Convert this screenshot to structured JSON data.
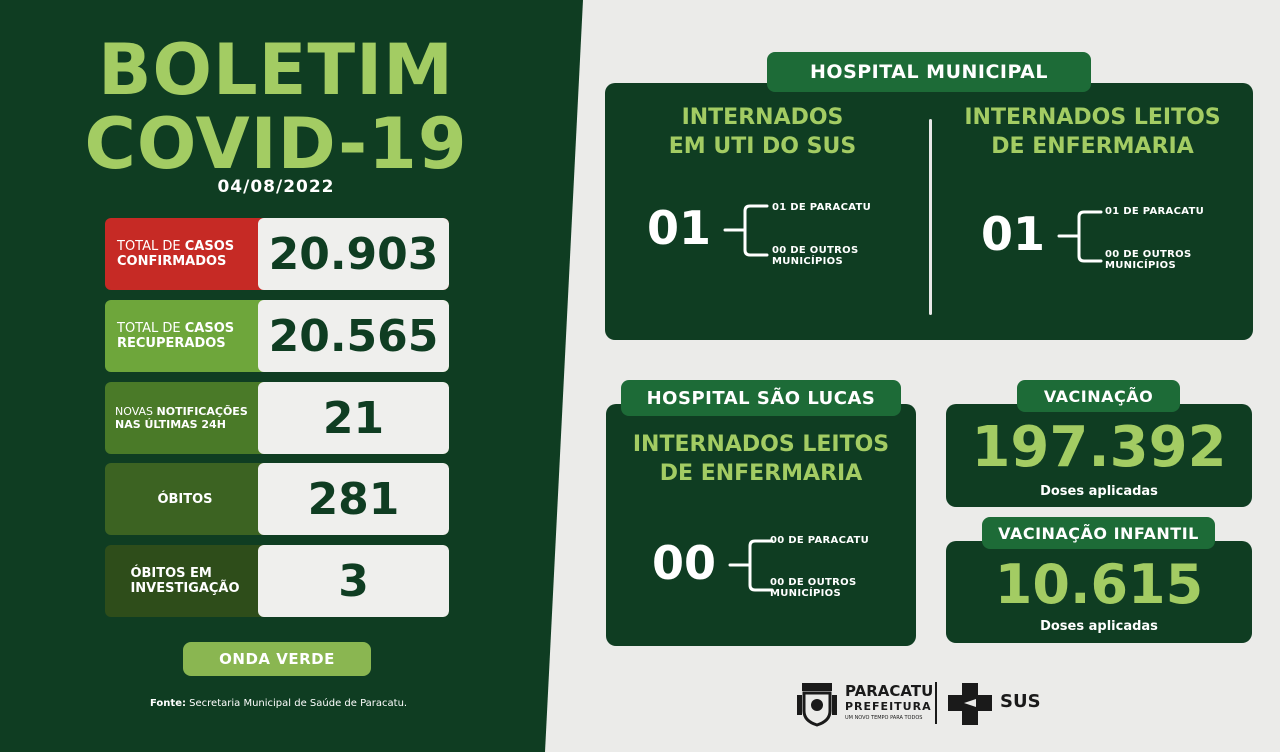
{
  "header": {
    "title_line1": "BOLETIM",
    "title_line2": "COVID-19",
    "date": "04/08/2022"
  },
  "stats": [
    {
      "label_pre": "TOTAL DE ",
      "label_bold": "CASOS",
      "label_line2": "CONFIRMADOS",
      "value": "20.903",
      "color": "#c62a25"
    },
    {
      "label_pre": "TOTAL DE ",
      "label_bold": "CASOS",
      "label_line2": "RECUPERADOS",
      "value": "20.565",
      "color": "#6ea63b"
    },
    {
      "label_pre": "NOVAS ",
      "label_bold": "NOTIFICAÇÕES",
      "label_line2": "NAS ÚLTIMAS 24H",
      "value": "21",
      "color": "#4a7a28"
    },
    {
      "label_line1": "ÓBITOS",
      "value": "281",
      "color": "#3c6322"
    },
    {
      "label_line1": "ÓBITOS EM",
      "label_line2": "INVESTIGAÇÃO",
      "value": "3",
      "color": "#2e4d1a"
    }
  ],
  "onda": "ONDA VERDE",
  "fonte": {
    "label": "Fonte:",
    "text": " Secretaria Municipal de Saúde de Paracatu."
  },
  "hospital_municipal": {
    "tab": "HOSPITAL MUNICIPAL",
    "uti": {
      "head_line1": "INTERNADOS",
      "head_line2": "EM UTI DO SUS",
      "value": "01",
      "sub1": "01 DE PARACATU",
      "sub2_line1": "00 DE OUTROS",
      "sub2_line2": "MUNICÍPIOS"
    },
    "enfermaria": {
      "head_line1": "INTERNADOS LEITOS",
      "head_line2": "DE ENFERMARIA",
      "value": "01",
      "sub1": "01 DE PARACATU",
      "sub2_line1": "00 DE OUTROS",
      "sub2_line2": "MUNICÍPIOS"
    }
  },
  "hospital_sao_lucas": {
    "tab": "HOSPITAL SÃO LUCAS",
    "head_line1": "INTERNADOS LEITOS",
    "head_line2": "DE ENFERMARIA",
    "value": "00",
    "sub1": "00 DE PARACATU",
    "sub2_line1": "00 DE OUTROS",
    "sub2_line2": "MUNICÍPIOS"
  },
  "vacinacao": {
    "tab": "VACINAÇÃO",
    "value": "197.392",
    "sub": "Doses aplicadas"
  },
  "vacinacao_infantil": {
    "tab": "VACINAÇÃO INFANTIL",
    "value": "10.615",
    "sub": "Doses aplicadas"
  },
  "footer": {
    "city": "PARACATU",
    "pref": "PREFEITURA",
    "slogan": "UM NOVO TEMPO PARA TODOS",
    "sus": "SUS",
    "crest_icon": "city-crest-icon",
    "sus_icon": "sus-cross-icon"
  }
}
